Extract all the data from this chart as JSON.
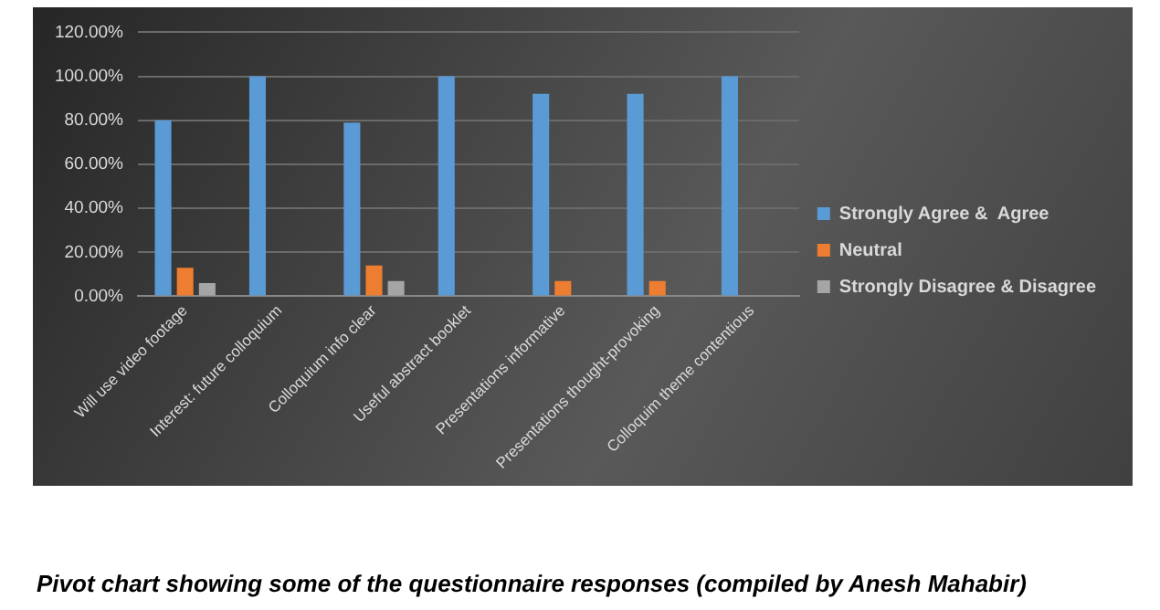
{
  "chart_data": {
    "type": "bar",
    "categories": [
      "Will use video footage",
      "Interest: future colloquium",
      "Colloquium info clear",
      "Useful abstract booklet",
      "Presentations informative",
      "Presentations thought-provoking",
      "Colloquim theme contentious"
    ],
    "series": [
      {
        "name": "Strongly Agree &  Agree",
        "color": "#5b9bd5",
        "values": [
          80,
          100,
          79,
          100,
          92,
          92,
          100
        ]
      },
      {
        "name": "Neutral",
        "color": "#ed7d31",
        "values": [
          13,
          0,
          14,
          0,
          7,
          7,
          0
        ]
      },
      {
        "name": "Strongly Disagree & Disagree",
        "color": "#a5a5a5",
        "values": [
          6,
          0,
          7,
          0,
          0,
          0,
          0
        ]
      }
    ],
    "ylim": [
      0,
      120
    ],
    "yticks": [
      {
        "value": 0,
        "label": "0.00%"
      },
      {
        "value": 20,
        "label": "20.00%"
      },
      {
        "value": 40,
        "label": "40.00%"
      },
      {
        "value": 60,
        "label": "60.00%"
      },
      {
        "value": 80,
        "label": "80.00%"
      },
      {
        "value": 100,
        "label": "100.00%"
      },
      {
        "value": 120,
        "label": "120.00%"
      }
    ],
    "grid": "y",
    "legend": "right",
    "annotations": [
      "Pivot chart showing some of the questionnaire responses (compiled by Anesh Mahabir)"
    ]
  }
}
